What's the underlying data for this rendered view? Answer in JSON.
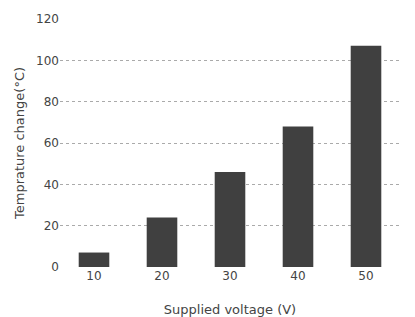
{
  "chart_data": {
    "type": "bar",
    "xlabel": "Supplied voltage (V)",
    "ylabel": "Temprature change(°C)",
    "categories": [
      "10",
      "20",
      "30",
      "40",
      "50"
    ],
    "values": [
      7,
      24,
      46,
      68,
      107
    ],
    "color": "#404040",
    "ylim": [
      0,
      120
    ],
    "yticks": [
      0,
      20,
      40,
      60,
      80,
      100,
      120
    ],
    "grid": true
  }
}
